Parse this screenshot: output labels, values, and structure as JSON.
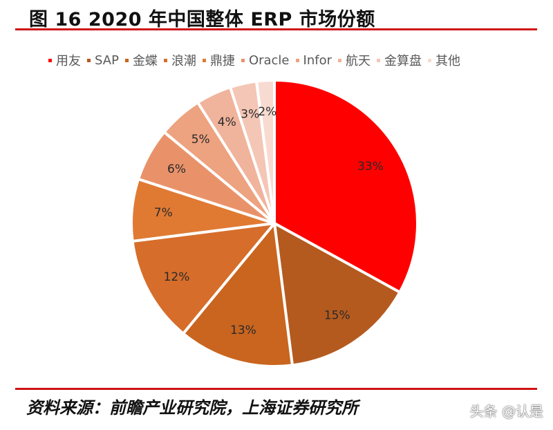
{
  "title": "图 16 2020 年中国整体 ERP 市场份额",
  "chart_data": {
    "type": "pie",
    "title": "图 16 2020 年中国整体 ERP 市场份额",
    "categories": [
      "用友",
      "SAP",
      "金蝶",
      "浪潮",
      "鼎捷",
      "Oracle",
      "Infor",
      "航天",
      "金算盘",
      "其他"
    ],
    "values": [
      33,
      15,
      13,
      12,
      7,
      6,
      5,
      4,
      3,
      2
    ],
    "labels": [
      "33%",
      "15%",
      "13%",
      "12%",
      "7%",
      "6%",
      "5%",
      "4%",
      "3%",
      "2%"
    ],
    "colors": [
      "#fe0000",
      "#b55a1f",
      "#c9651f",
      "#d66d2b",
      "#e07a33",
      "#e9926a",
      "#eda280",
      "#f0b39b",
      "#f4c6b5",
      "#f7dbd1"
    ],
    "legend_position": "top"
  },
  "footer": {
    "source": "资料来源：前瞻产业研究院，上海证券研究所",
    "watermark": "头条 @认是"
  }
}
